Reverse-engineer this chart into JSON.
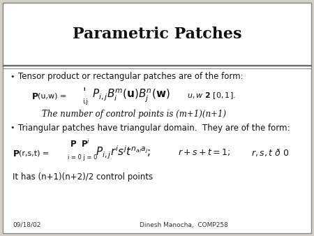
{
  "title": "Parametric Patches",
  "background_color": "#d4d0c8",
  "slide_bg": "#ffffff",
  "title_fontsize": 16,
  "footer_date": "09/18/02",
  "footer_course": "Dinesh Manocha,  COMP258",
  "bullet1": "Tensor product or rectangular patches are of the form:",
  "control_points_text": "The number of control points is (m+1)(n+1)",
  "bullet2": "Triangular patches have triangular domain.  They are of the form:",
  "last_line": "It has (n+1)(n+2)/2 control points"
}
